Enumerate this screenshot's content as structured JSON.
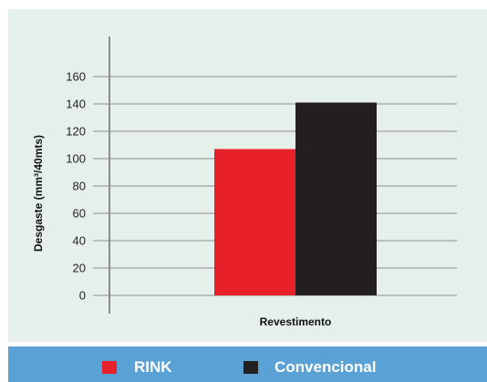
{
  "chart_data": {
    "type": "bar",
    "categories": [
      ""
    ],
    "series": [
      {
        "name": "RINK",
        "values": [
          107
        ],
        "color": "#e8202a"
      },
      {
        "name": "Convencional",
        "values": [
          141
        ],
        "color": "#231f20"
      }
    ],
    "xlabel": "Revestimento",
    "ylabel": "Desgaste (mm³/40mts)",
    "ylim": [
      0,
      160
    ],
    "yticks": [
      0,
      20,
      40,
      60,
      80,
      100,
      120,
      140,
      160
    ],
    "grid": true,
    "legend": "bottom"
  },
  "legend": {
    "items": [
      {
        "label": "RINK",
        "color": "#e8202a"
      },
      {
        "label": "Convencional",
        "color": "#231f20"
      }
    ]
  }
}
